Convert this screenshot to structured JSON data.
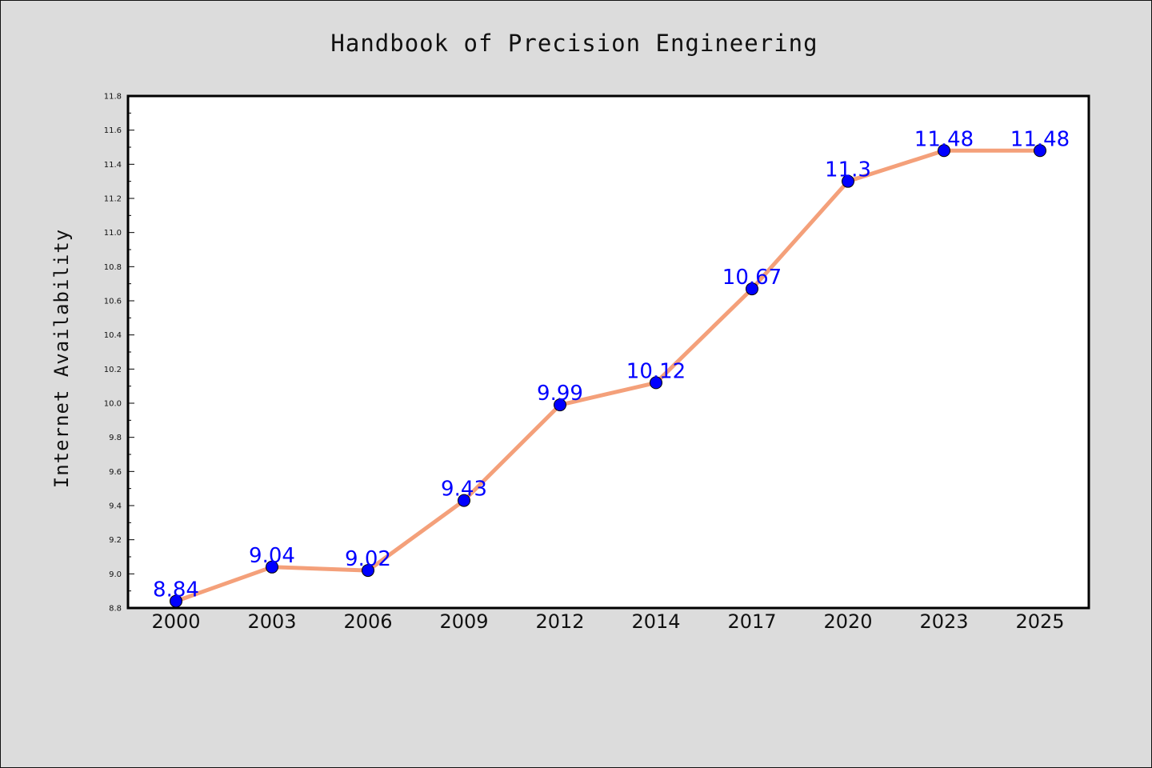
{
  "chart_data": {
    "type": "line",
    "title": "Handbook of Precision Engineering",
    "xlabel": "",
    "ylabel": "Internet Availability",
    "categories": [
      "2000",
      "2003",
      "2006",
      "2009",
      "2012",
      "2014",
      "2017",
      "2020",
      "2023",
      "2025"
    ],
    "series": [
      {
        "values": [
          8.84,
          9.04,
          9.02,
          9.43,
          9.99,
          10.12,
          10.67,
          11.3,
          11.48,
          11.48
        ],
        "labels": [
          "8.84",
          "9.04",
          "9.02",
          "9.43",
          "9.99",
          "10.12",
          "10.67",
          "11.3",
          "11.48",
          "11.48"
        ]
      }
    ],
    "ylim": [
      8.8,
      11.8
    ],
    "yticks": [
      "8.8",
      "9.0",
      "9.2",
      "9.4",
      "9.6",
      "9.8",
      "10.0",
      "10.2",
      "10.4",
      "10.6",
      "10.8",
      "11.0",
      "11.2",
      "11.4",
      "11.6",
      "11.8"
    ],
    "grid": false,
    "colors": {
      "background": "#dcdcdc",
      "plot_background": "#ffffff",
      "line": "#f4a07a",
      "marker": "#0000ff",
      "data_label": "#0000ff"
    }
  }
}
